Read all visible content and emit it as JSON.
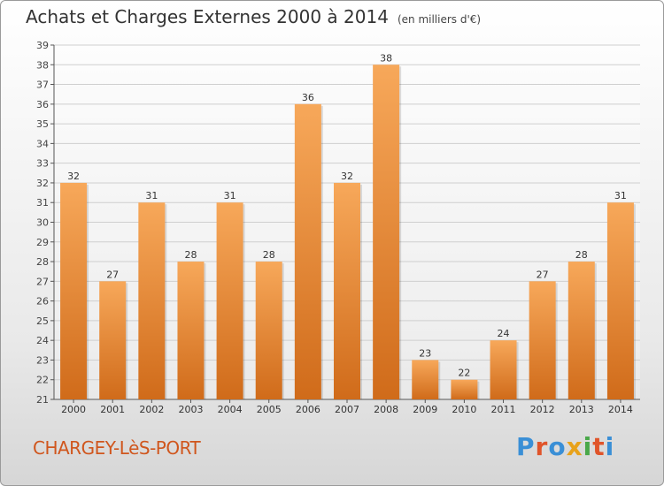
{
  "header": {
    "title": "Achats et Charges Externes 2000 à 2014",
    "unit": "(en milliers d'€)"
  },
  "footer": {
    "commune": "CHARGEY-LèS-PORT",
    "logo": "Proxiti"
  },
  "colors": {
    "bar_light": "#f7a85a",
    "bar_dark": "#d06b1a",
    "commune_text": "#d0561d"
  },
  "chart_data": {
    "type": "bar",
    "title": "Achats et Charges Externes 2000 à 2014",
    "subtitle": "(en milliers d'€)",
    "categories": [
      "2000",
      "2001",
      "2002",
      "2003",
      "2004",
      "2005",
      "2006",
      "2007",
      "2008",
      "2009",
      "2010",
      "2011",
      "2012",
      "2013",
      "2014"
    ],
    "values": [
      32,
      27,
      31,
      28,
      31,
      28,
      36,
      32,
      38,
      23,
      22,
      24,
      27,
      28,
      31
    ],
    "ylim": [
      21,
      39
    ],
    "yticks": [
      21,
      22,
      23,
      24,
      25,
      26,
      27,
      28,
      29,
      30,
      31,
      32,
      33,
      34,
      35,
      36,
      37,
      38,
      39
    ],
    "grid": true,
    "xlabel": "",
    "ylabel": ""
  }
}
